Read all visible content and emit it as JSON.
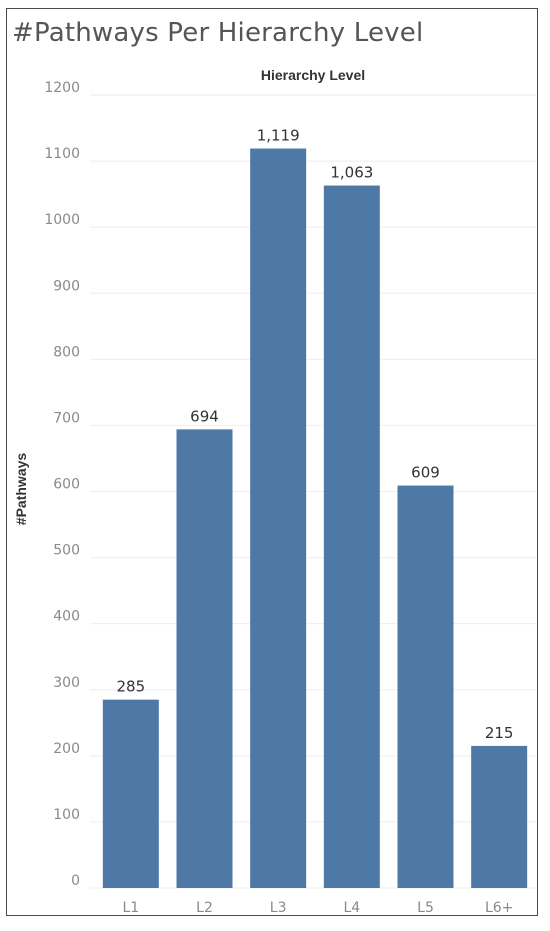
{
  "chart_data": {
    "type": "bar",
    "title": "#Pathways Per Hierarchy Level",
    "column_header": "Hierarchy Level",
    "xlabel": "",
    "ylabel": "#Pathways",
    "categories": [
      "L1",
      "L2",
      "L3",
      "L4",
      "L5",
      "L6+"
    ],
    "values": [
      285,
      694,
      1119,
      1063,
      609,
      215
    ],
    "data_labels": [
      "285",
      "694",
      "1,119",
      "1,063",
      "609",
      "215"
    ],
    "ylim": [
      0,
      1200
    ],
    "yticks": [
      0,
      100,
      200,
      300,
      400,
      500,
      600,
      700,
      800,
      900,
      1000,
      1100,
      1200
    ],
    "grid": true,
    "bar_color": "#4e79a7",
    "grid_color": "#eeeeee"
  }
}
